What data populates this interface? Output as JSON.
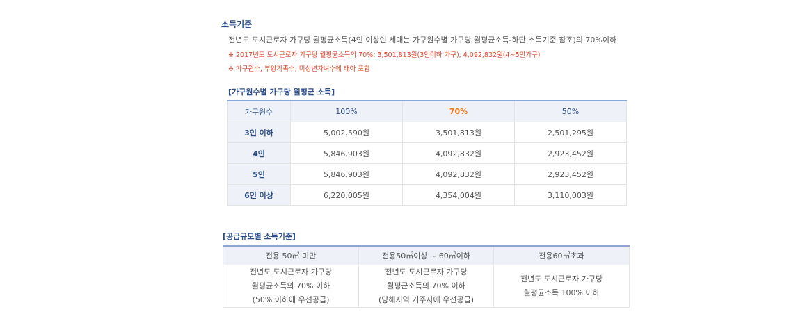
{
  "section_title": "소득기준",
  "description": "전년도 도시근로자 가구당 월평균소득(4인 이상인 세대는 가구원수별 가구당 월평균소득-하단 소득기준 참조)의 70%이하",
  "notes": [
    "※ 2017년도 도시근로자 가구당 월평균소득의 70%: 3,501,813원(3인이하 가구),  4,092,832원(4~5인가구)",
    "※ 가구원수, 부양가족수, 미성년자녀수에 태아 포함"
  ],
  "income_table": {
    "title": "[가구원수별 가구당 월평균 소득]",
    "headers": [
      "가구원수",
      "100%",
      "70%",
      "50%"
    ],
    "rows": [
      {
        "label": "3인 이하",
        "values": [
          "5,002,590원",
          "3,501,813원",
          "2,501,295원"
        ]
      },
      {
        "label": "4인",
        "values": [
          "5,846,903원",
          "4,092,832원",
          "2,923,452원"
        ]
      },
      {
        "label": "5인",
        "values": [
          "5,846,903원",
          "4,092,832원",
          "2,923,452원"
        ]
      },
      {
        "label": "6인 이상",
        "values": [
          "6,220,005원",
          "4,354,004원",
          "3,110,003원"
        ]
      }
    ],
    "highlight_color": "#ee7a1b"
  },
  "supply_table": {
    "title": "[공급규모별 소득기준]",
    "headers": [
      "전용 50㎡ 미만",
      "전용50㎡이상 ~ 60㎡이하",
      "전용60㎡초과"
    ],
    "cells": [
      [
        "전년도 도시근로자 가구당",
        "월평균소득의 70% 이하",
        "(50% 이하에 우선공급)"
      ],
      [
        "전년도 도시근로자 가구당",
        "월평균소득의 70% 이하",
        "(당해지역 거주자에 우선공급)"
      ],
      [
        "전년도 도시근로자 가구당",
        "월평균소득 100% 이하"
      ]
    ]
  }
}
